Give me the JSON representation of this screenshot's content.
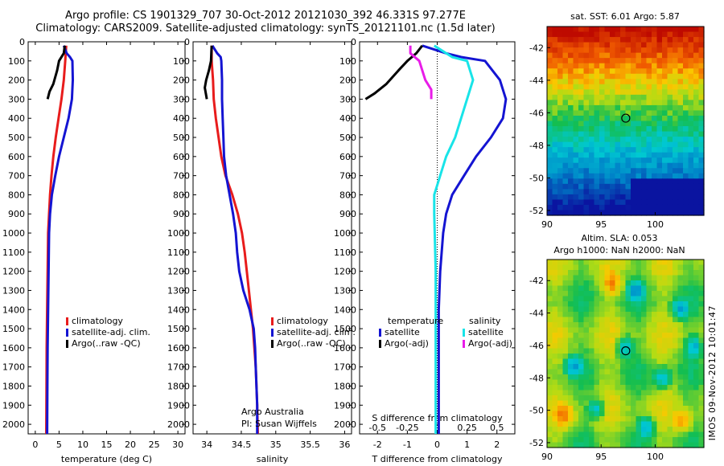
{
  "header": {
    "line1": "Argo profile: CS 1901329_707 30-Oct-2012 20121030_392 46.331S 97.277E",
    "line2": "Climatology: CARS2009. Satellite-adjusted climatology: synTS_20121101.nc (1.5d later)"
  },
  "watermark": "IMOS 09-Nov-2012 10:01:47",
  "colors": {
    "red": "#e81c1c",
    "blue": "#1414d2",
    "black": "#000000",
    "cyan": "#18e4e8",
    "magenta": "#e81ce8"
  },
  "chart_data": [
    {
      "type": "line",
      "xlabel": "temperature (deg C)",
      "xticks": [
        "0",
        "5",
        "10",
        "15",
        "20",
        "25",
        "30"
      ],
      "xlim": [
        -1.5,
        31.5
      ],
      "ylim": [
        0,
        2050
      ],
      "yticks": [
        "0",
        "100",
        "200",
        "300",
        "400",
        "500",
        "600",
        "700",
        "800",
        "900",
        "1000",
        "1100",
        "1200",
        "1300",
        "1400",
        "1500",
        "1600",
        "1700",
        "1800",
        "1900",
        "2000"
      ],
      "legend": [
        "climatology",
        "satellite-adj. clim.",
        "Argo(..raw -QC)"
      ],
      "series": [
        {
          "color": "red",
          "points": [
            [
              6.5,
              20
            ],
            [
              6.3,
              100
            ],
            [
              6.0,
              200
            ],
            [
              5.5,
              300
            ],
            [
              4.9,
              400
            ],
            [
              4.3,
              500
            ],
            [
              3.8,
              600
            ],
            [
              3.4,
              700
            ],
            [
              3.1,
              800
            ],
            [
              2.9,
              900
            ],
            [
              2.7,
              1000
            ],
            [
              2.6,
              1200
            ],
            [
              2.5,
              1400
            ],
            [
              2.4,
              1600
            ],
            [
              2.35,
              1800
            ],
            [
              2.3,
              2050
            ]
          ]
        },
        {
          "color": "blue",
          "points": [
            [
              6.0,
              20
            ],
            [
              6.6,
              60
            ],
            [
              7.3,
              80
            ],
            [
              7.8,
              100
            ],
            [
              7.9,
              200
            ],
            [
              7.7,
              300
            ],
            [
              7.0,
              400
            ],
            [
              6.0,
              500
            ],
            [
              5.0,
              600
            ],
            [
              4.2,
              700
            ],
            [
              3.5,
              800
            ],
            [
              3.1,
              900
            ],
            [
              2.9,
              1000
            ],
            [
              2.8,
              1200
            ],
            [
              2.7,
              1400
            ],
            [
              2.6,
              1600
            ],
            [
              2.55,
              1800
            ],
            [
              2.5,
              2050
            ]
          ]
        },
        {
          "color": "black",
          "points": [
            [
              6.2,
              20
            ],
            [
              6.0,
              60
            ],
            [
              5.0,
              100
            ],
            [
              4.6,
              150
            ],
            [
              3.8,
              220
            ],
            [
              3.0,
              260
            ],
            [
              2.6,
              300
            ]
          ]
        }
      ]
    },
    {
      "type": "line",
      "xlabel": "salinity",
      "xticks": [
        "34",
        "34.5",
        "35",
        "35.5",
        "36"
      ],
      "xlim": [
        33.8,
        36.1
      ],
      "ylim": [
        0,
        2050
      ],
      "legend": [
        "climatology",
        "satellite-adj. clim.",
        "Argo(..raw -QC)"
      ],
      "annotation": [
        "Argo Australia",
        "PI: Susan Wijffels"
      ],
      "series": [
        {
          "color": "red",
          "points": [
            [
              34.07,
              20
            ],
            [
              34.07,
              100
            ],
            [
              34.09,
              200
            ],
            [
              34.1,
              300
            ],
            [
              34.13,
              400
            ],
            [
              34.17,
              500
            ],
            [
              34.21,
              600
            ],
            [
              34.27,
              700
            ],
            [
              34.37,
              800
            ],
            [
              34.45,
              900
            ],
            [
              34.51,
              1000
            ],
            [
              34.55,
              1100
            ],
            [
              34.58,
              1200
            ],
            [
              34.61,
              1300
            ],
            [
              34.64,
              1400
            ],
            [
              34.67,
              1500
            ],
            [
              34.69,
              1600
            ],
            [
              34.71,
              1700
            ],
            [
              34.72,
              1800
            ],
            [
              34.73,
              1900
            ],
            [
              34.74,
              2050
            ]
          ]
        },
        {
          "color": "blue",
          "points": [
            [
              34.08,
              20
            ],
            [
              34.15,
              60
            ],
            [
              34.2,
              80
            ],
            [
              34.21,
              100
            ],
            [
              34.22,
              200
            ],
            [
              34.22,
              300
            ],
            [
              34.23,
              400
            ],
            [
              34.24,
              500
            ],
            [
              34.25,
              600
            ],
            [
              34.28,
              700
            ],
            [
              34.33,
              800
            ],
            [
              34.38,
              900
            ],
            [
              34.42,
              1000
            ],
            [
              34.44,
              1100
            ],
            [
              34.47,
              1200
            ],
            [
              34.53,
              1300
            ],
            [
              34.62,
              1400
            ],
            [
              34.68,
              1500
            ],
            [
              34.7,
              1600
            ],
            [
              34.71,
              1700
            ],
            [
              34.72,
              1800
            ],
            [
              34.73,
              1900
            ],
            [
              34.73,
              2050
            ]
          ]
        },
        {
          "color": "black",
          "points": [
            [
              34.07,
              20
            ],
            [
              34.06,
              100
            ],
            [
              34.03,
              150
            ],
            [
              33.99,
              200
            ],
            [
              33.97,
              240
            ],
            [
              34.0,
              300
            ]
          ]
        }
      ]
    },
    {
      "type": "line",
      "xlabel": "T difference from climatology",
      "xticks": [
        "-2",
        "-1",
        "0",
        "1",
        "2"
      ],
      "xlim": [
        -2.6,
        2.6
      ],
      "top_axis_label": "S difference from climatology",
      "top_axis_ticks": [
        "-0.5",
        "-0.25",
        "0",
        "0.25",
        "0.5"
      ],
      "ylim": [
        0,
        2050
      ],
      "legend_groups": [
        {
          "title": "temperature",
          "items": [
            "satellite",
            "Argo(-adj)"
          ]
        },
        {
          "title": "salinity",
          "items": [
            "satellite",
            "Argo(-adj)"
          ]
        }
      ],
      "series": [
        {
          "name": "temperature satellite",
          "color": "blue",
          "points": [
            [
              -0.5,
              20
            ],
            [
              0.3,
              60
            ],
            [
              0.8,
              80
            ],
            [
              1.6,
              100
            ],
            [
              2.1,
              200
            ],
            [
              2.3,
              300
            ],
            [
              2.2,
              400
            ],
            [
              1.8,
              500
            ],
            [
              1.3,
              600
            ],
            [
              0.9,
              700
            ],
            [
              0.5,
              800
            ],
            [
              0.3,
              900
            ],
            [
              0.2,
              1000
            ],
            [
              0.1,
              1200
            ],
            [
              0.05,
              1400
            ],
            [
              0.05,
              1600
            ],
            [
              0.05,
              1800
            ],
            [
              0.05,
              2050
            ]
          ]
        },
        {
          "name": "temperature Argo(-adj)",
          "color": "black",
          "points": [
            [
              -0.5,
              20
            ],
            [
              -0.7,
              60
            ],
            [
              -1.0,
              100
            ],
            [
              -1.3,
              150
            ],
            [
              -1.7,
              220
            ],
            [
              -2.1,
              270
            ],
            [
              -2.4,
              300
            ]
          ]
        },
        {
          "name": "salinity satellite",
          "color": "cyan",
          "points": [
            [
              -0.1,
              20
            ],
            [
              0.5,
              80
            ],
            [
              1.0,
              100
            ],
            [
              1.2,
              200
            ],
            [
              1.0,
              300
            ],
            [
              0.8,
              400
            ],
            [
              0.6,
              500
            ],
            [
              0.3,
              600
            ],
            [
              0.1,
              700
            ],
            [
              -0.1,
              800
            ],
            [
              -0.1,
              900
            ],
            [
              -0.05,
              1200
            ],
            [
              -0.05,
              1500
            ],
            [
              -0.05,
              1800
            ],
            [
              -0.05,
              2050
            ]
          ]
        },
        {
          "name": "salinity Argo(-adj)",
          "color": "magenta",
          "points": [
            [
              -0.9,
              20
            ],
            [
              -0.9,
              60
            ],
            [
              -0.6,
              100
            ],
            [
              -0.4,
              200
            ],
            [
              -0.2,
              250
            ],
            [
              -0.2,
              300
            ]
          ]
        }
      ]
    },
    {
      "type": "heatmap",
      "title": "sat. SST: 6.01 Argo: 5.87",
      "xticks": [
        "90",
        "95",
        "100"
      ],
      "yticks": [
        "-42",
        "-44",
        "-46",
        "-48",
        "-50",
        "-52"
      ],
      "xlim": [
        90,
        104.5
      ],
      "ylim": [
        -52.3,
        -40.7
      ],
      "marker": {
        "lon": 97.277,
        "lat": -46.331
      }
    },
    {
      "type": "heatmap",
      "title": "Altim. SLA: 0.053",
      "subtitle": "Argo h1000: NaN h2000: NaN",
      "xticks": [
        "90",
        "95",
        "100"
      ],
      "yticks": [
        "-42",
        "-44",
        "-46",
        "-48",
        "-50",
        "-52"
      ],
      "xlim": [
        90,
        104.5
      ],
      "ylim": [
        -52.3,
        -40.7
      ],
      "marker": {
        "lon": 97.277,
        "lat": -46.331
      }
    }
  ]
}
